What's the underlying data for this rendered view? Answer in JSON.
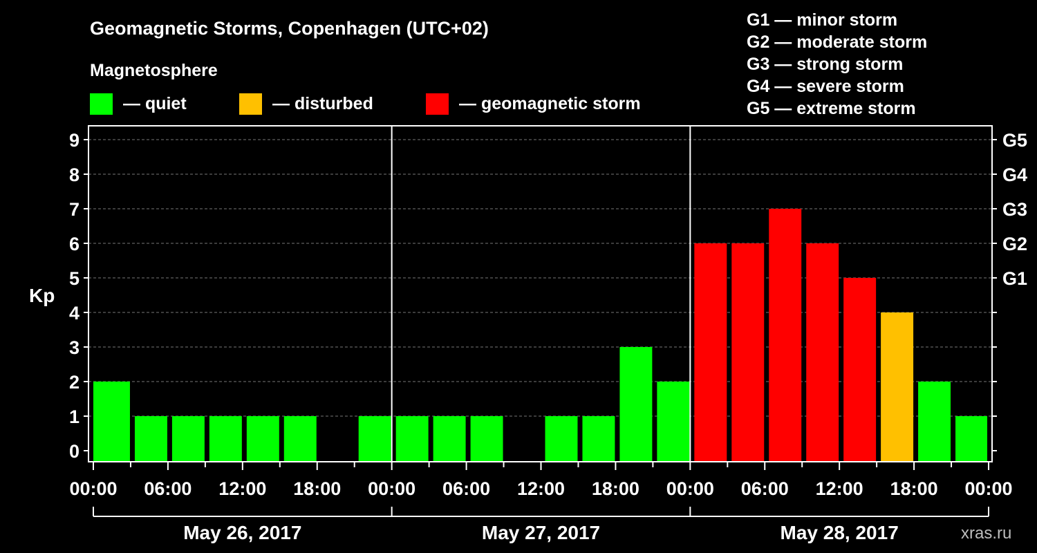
{
  "chart_data": {
    "type": "bar",
    "title": "Geomagnetic Storms, Copenhagen (UTC+02)",
    "legend_title": "Magnetosphere",
    "legend": [
      {
        "label": "— quiet",
        "color": "#00ff00"
      },
      {
        "label": "— disturbed",
        "color": "#ffc000"
      },
      {
        "label": "— geomagnetic storm",
        "color": "#ff0000"
      }
    ],
    "storm_scale": [
      "G1 — minor storm",
      "G2 — moderate storm",
      "G3 — strong storm",
      "G4 — severe storm",
      "G5 — extreme storm"
    ],
    "ylabel": "Kp",
    "ylim": [
      0,
      9
    ],
    "yticks": [
      "0",
      "1",
      "2",
      "3",
      "4",
      "5",
      "6",
      "7",
      "8",
      "9"
    ],
    "right_ticks": [
      {
        "kp": 5,
        "label": "G1"
      },
      {
        "kp": 6,
        "label": "G2"
      },
      {
        "kp": 7,
        "label": "G3"
      },
      {
        "kp": 8,
        "label": "G4"
      },
      {
        "kp": 9,
        "label": "G5"
      }
    ],
    "xtick_labels": [
      "00:00",
      "06:00",
      "12:00",
      "18:00",
      "00:00",
      "06:00",
      "12:00",
      "18:00",
      "00:00",
      "06:00",
      "12:00",
      "18:00",
      "00:00"
    ],
    "days": [
      "May 26, 2017",
      "May 27, 2017",
      "May 28, 2017"
    ],
    "grid": true,
    "interval_hours": 3,
    "values": [
      2,
      1,
      1,
      1,
      1,
      1,
      0,
      1,
      1,
      1,
      1,
      0,
      1,
      1,
      3,
      2,
      6,
      6,
      7,
      6,
      5,
      4,
      2,
      1
    ],
    "status": [
      "quiet",
      "quiet",
      "quiet",
      "quiet",
      "quiet",
      "quiet",
      "quiet",
      "quiet",
      "quiet",
      "quiet",
      "quiet",
      "quiet",
      "quiet",
      "quiet",
      "quiet",
      "quiet",
      "storm",
      "storm",
      "storm",
      "storm",
      "storm",
      "disturbed",
      "quiet",
      "quiet"
    ],
    "status_colors": {
      "quiet": "#00ff00",
      "disturbed": "#ffc000",
      "storm": "#ff0000"
    },
    "watermark": "xras.ru"
  }
}
